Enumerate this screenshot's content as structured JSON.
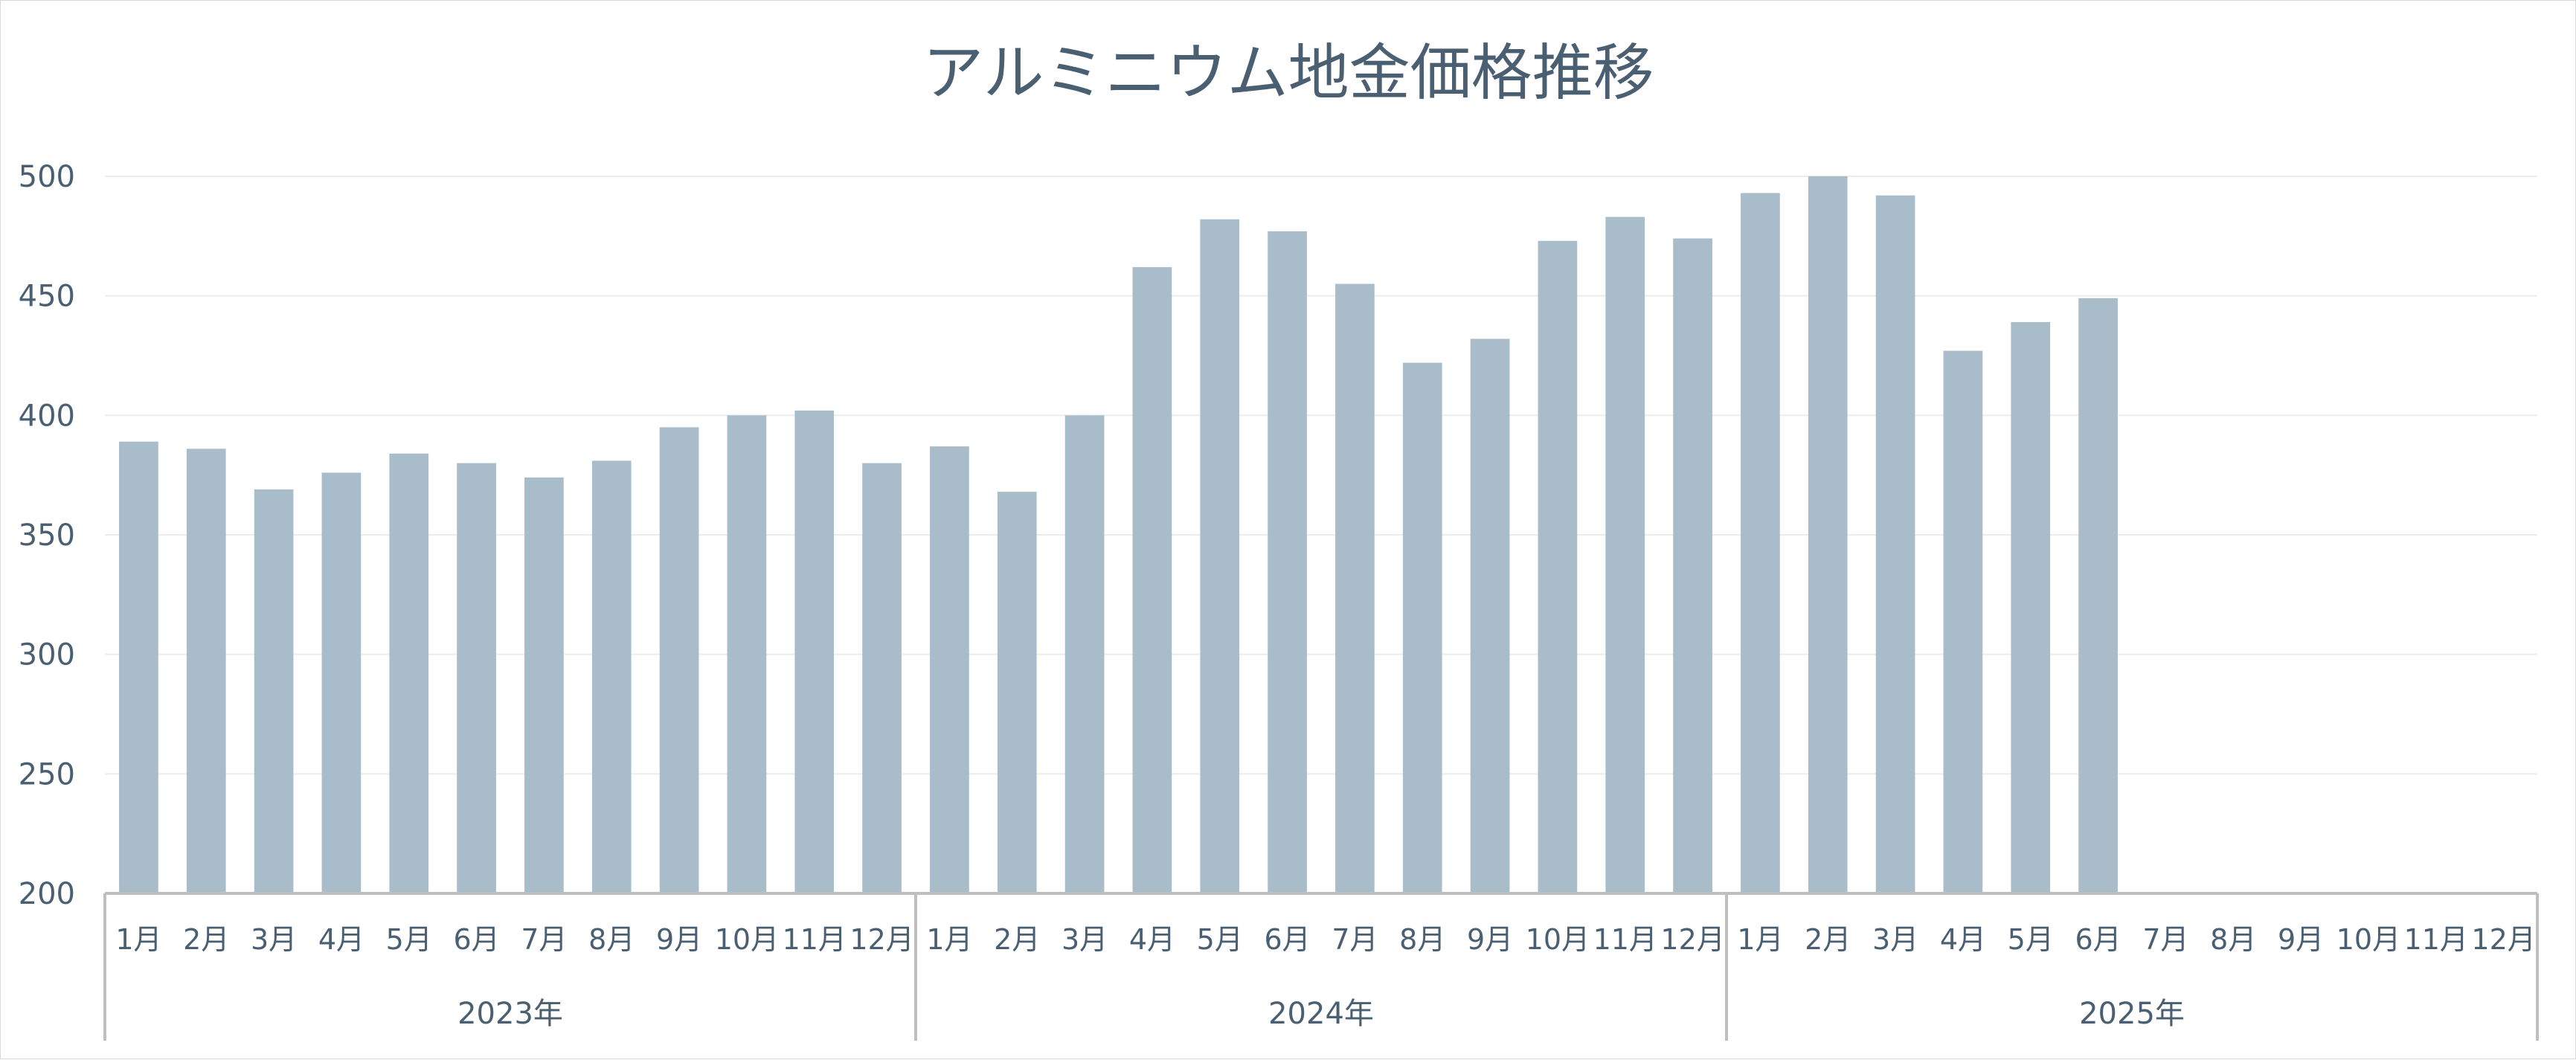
{
  "chart_data": {
    "type": "bar",
    "title": "アルミニウム地金価格推移",
    "xlabel": "",
    "ylabel": "",
    "ylim": [
      200,
      500
    ],
    "yticks": [
      200,
      250,
      300,
      350,
      400,
      450,
      500
    ],
    "grid": true,
    "legend": "none",
    "bar_color": "#a9bcc9",
    "groups": [
      {
        "label": "2023年",
        "months": [
          "1月",
          "2月",
          "3月",
          "4月",
          "5月",
          "6月",
          "7月",
          "8月",
          "9月",
          "10月",
          "11月",
          "12月"
        ]
      },
      {
        "label": "2024年",
        "months": [
          "1月",
          "2月",
          "3月",
          "4月",
          "5月",
          "6月",
          "7月",
          "8月",
          "9月",
          "10月",
          "11月",
          "12月"
        ]
      },
      {
        "label": "2025年",
        "months": [
          "1月",
          "2月",
          "3月",
          "4月",
          "5月",
          "6月",
          "7月",
          "8月",
          "9月",
          "10月",
          "11月",
          "12月"
        ]
      }
    ],
    "values": [
      389,
      386,
      369,
      376,
      384,
      380,
      374,
      381,
      395,
      400,
      402,
      380,
      387,
      368,
      400,
      462,
      482,
      477,
      455,
      422,
      432,
      473,
      483,
      474,
      493,
      500,
      492,
      427,
      439,
      449,
      null,
      null,
      null,
      null,
      null,
      null
    ]
  }
}
